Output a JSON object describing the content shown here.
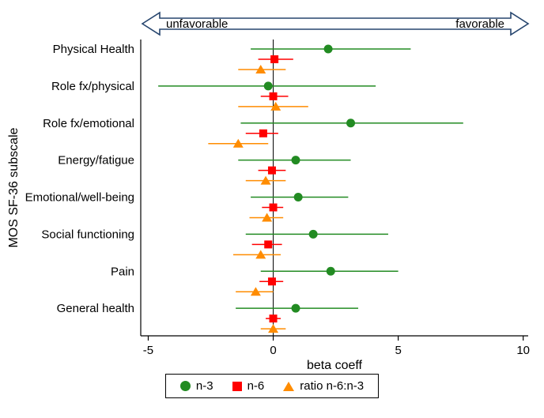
{
  "chart_data": {
    "type": "scatter",
    "variant": "forest-plot",
    "title": "",
    "xlabel": "beta coeff",
    "ylabel": "MOS SF-36 subscale",
    "xlim": [
      -5.3,
      10.2
    ],
    "xticks": [
      -5,
      0,
      5,
      10
    ],
    "zero_line": 0,
    "grid": false,
    "legend_position": "bottom",
    "arrow_color": "#26456e",
    "direction_labels": {
      "left": "unfavorable",
      "right": "favorable"
    },
    "categories": [
      "Physical Health",
      "Role fx/physical",
      "Role fx/emotional",
      "Energy/fatigue",
      "Emotional/well-being",
      "Social functioning",
      "Pain",
      "General health"
    ],
    "series": [
      {
        "name": "n-3",
        "key": "n3",
        "marker": "circle",
        "color": "#228B22",
        "points": [
          {
            "est": 2.2,
            "lo": -0.9,
            "hi": 5.5
          },
          {
            "est": -0.2,
            "lo": -4.6,
            "hi": 4.1
          },
          {
            "est": 3.1,
            "lo": -1.3,
            "hi": 7.6
          },
          {
            "est": 0.9,
            "lo": -1.4,
            "hi": 3.1
          },
          {
            "est": 1.0,
            "lo": -0.9,
            "hi": 3.0
          },
          {
            "est": 1.6,
            "lo": -1.1,
            "hi": 4.6
          },
          {
            "est": 2.3,
            "lo": -0.5,
            "hi": 5.0
          },
          {
            "est": 0.9,
            "lo": -1.5,
            "hi": 3.4
          }
        ]
      },
      {
        "name": "n-6",
        "key": "n6",
        "marker": "square",
        "color": "#FF0000",
        "points": [
          {
            "est": 0.05,
            "lo": -0.6,
            "hi": 0.8
          },
          {
            "est": 0.0,
            "lo": -0.5,
            "hi": 0.6
          },
          {
            "est": -0.4,
            "lo": -1.1,
            "hi": 0.2
          },
          {
            "est": -0.05,
            "lo": -0.6,
            "hi": 0.5
          },
          {
            "est": 0.0,
            "lo": -0.45,
            "hi": 0.4
          },
          {
            "est": -0.2,
            "lo": -0.85,
            "hi": 0.35
          },
          {
            "est": -0.05,
            "lo": -0.55,
            "hi": 0.4
          },
          {
            "est": 0.0,
            "lo": -0.3,
            "hi": 0.3
          }
        ]
      },
      {
        "name": "ratio n-6:n-3",
        "key": "ratio",
        "marker": "triangle",
        "color": "#FF8C00",
        "points": [
          {
            "est": -0.5,
            "lo": -1.4,
            "hi": 0.5
          },
          {
            "est": 0.1,
            "lo": -1.4,
            "hi": 1.4
          },
          {
            "est": -1.4,
            "lo": -2.6,
            "hi": -0.2
          },
          {
            "est": -0.3,
            "lo": -1.1,
            "hi": 0.5
          },
          {
            "est": -0.25,
            "lo": -0.95,
            "hi": 0.4
          },
          {
            "est": -0.5,
            "lo": -1.6,
            "hi": 0.3
          },
          {
            "est": -0.7,
            "lo": -1.5,
            "hi": 0.0
          },
          {
            "est": 0.0,
            "lo": -0.5,
            "hi": 0.5
          }
        ]
      }
    ]
  }
}
